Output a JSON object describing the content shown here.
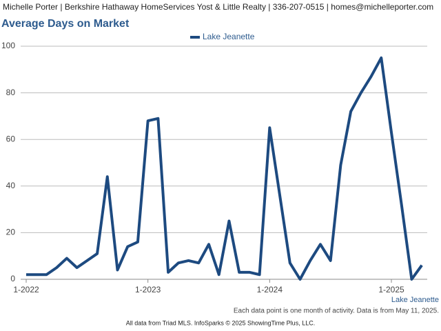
{
  "header": "Michelle Porter | Berkshire Hathaway HomeServices Yost & Little Realty | 336-207-0515 | homes@michelleporter.com",
  "chart_data": {
    "type": "line",
    "title": "Average Days on Market",
    "categories": [
      "1-2022",
      null,
      null,
      null,
      null,
      null,
      null,
      null,
      null,
      null,
      null,
      null,
      "1-2023",
      null,
      null,
      null,
      null,
      null,
      null,
      null,
      null,
      null,
      null,
      null,
      "1-2024",
      null,
      null,
      null,
      null,
      null,
      null,
      null,
      null,
      null,
      null,
      null,
      "1-2025",
      null,
      null,
      null
    ],
    "series": [
      {
        "name": "Lake Jeanette",
        "color": "#1d4a80",
        "values": [
          2,
          2,
          2,
          5,
          9,
          5,
          8,
          11,
          44,
          4,
          14,
          16,
          68,
          69,
          3,
          7,
          8,
          7,
          15,
          2,
          25,
          3,
          3,
          2,
          65,
          36,
          7,
          0,
          8,
          15,
          8,
          49,
          72,
          80,
          87,
          95,
          63,
          32,
          0,
          6
        ]
      }
    ],
    "ylim": [
      0,
      100
    ],
    "yticks": [
      0,
      20,
      40,
      60,
      80,
      100
    ],
    "grid": true,
    "legend": "top",
    "x_label": "Lake Jeanette",
    "note": "Each data point is one month of activity. Data is from May 11, 2025.",
    "footer": "All data from Triad MLS. InfoSparks © 2025 ShowingTime Plus, LLC."
  }
}
